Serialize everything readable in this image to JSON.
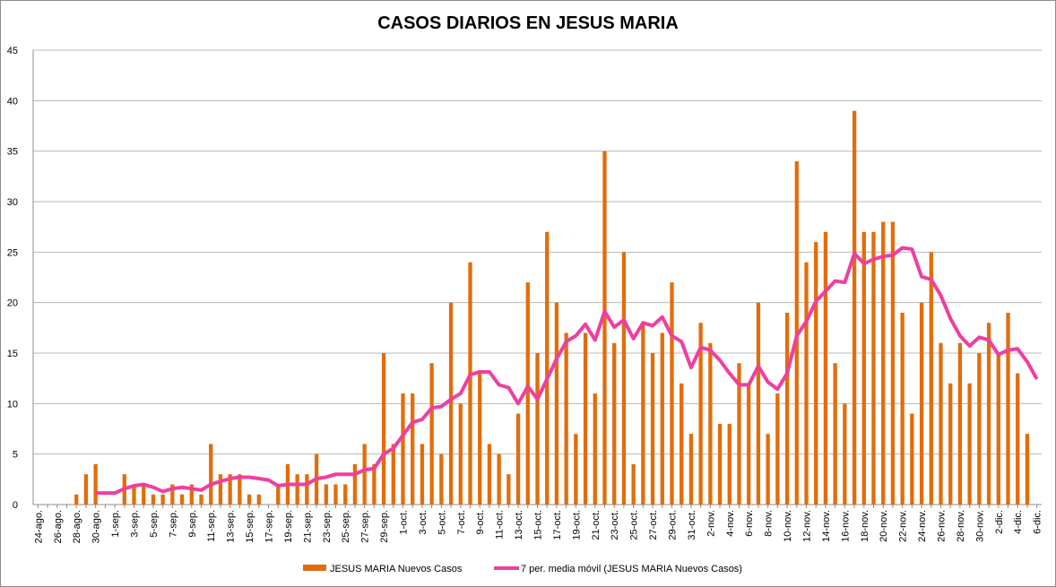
{
  "chart_data": {
    "type": "bar_line",
    "title": "CASOS DIARIOS EN JESUS MARIA",
    "categories": [
      "24-ago.",
      null,
      "26-ago.",
      null,
      "28-ago.",
      null,
      "30-ago.",
      null,
      "1-sep.",
      null,
      "3-sep.",
      null,
      "5-sep.",
      null,
      "7-sep.",
      null,
      "9-sep.",
      null,
      "11-sep.",
      null,
      "13-sep.",
      null,
      "15-sep.",
      null,
      "17-sep.",
      null,
      "19-sep.",
      null,
      "21-sep.",
      null,
      "23-sep.",
      null,
      "25-sep.",
      null,
      "27-sep.",
      null,
      "29-sep.",
      null,
      "1-oct.",
      null,
      "3-oct.",
      null,
      "5-oct.",
      null,
      "7-oct.",
      null,
      "9-oct.",
      null,
      "11-oct.",
      null,
      "13-oct.",
      null,
      "15-oct.",
      null,
      "17-oct.",
      null,
      "19-oct.",
      null,
      "21-oct.",
      null,
      "23-oct.",
      null,
      "25-oct.",
      null,
      "27-oct.",
      null,
      "29-oct.",
      null,
      "31-oct.",
      null,
      "2-nov.",
      null,
      "4-nov.",
      null,
      "6-nov.",
      null,
      "8-nov.",
      null,
      "10-nov.",
      null,
      "12-nov.",
      null,
      "14-nov.",
      null,
      "16-nov.",
      null,
      "18-nov.",
      null,
      "20-nov.",
      null,
      "22-nov.",
      null,
      "24-nov.",
      null,
      "26-nov.",
      null,
      "28-nov.",
      null,
      "30-nov.",
      null,
      "2-dic.",
      null,
      "4-dic.",
      null,
      "6-dic."
    ],
    "series": [
      {
        "name": "JESUS MARIA Nuevos Casos",
        "color": "#e36c0a",
        "kind": "bar",
        "values": [
          0,
          0,
          0,
          0,
          1,
          3,
          4,
          0,
          0,
          3,
          2,
          2,
          1,
          1,
          2,
          1,
          2,
          1,
          6,
          3,
          3,
          3,
          1,
          1,
          0,
          2,
          4,
          3,
          3,
          5,
          2,
          2,
          2,
          4,
          6,
          4,
          15,
          6,
          11,
          11,
          6,
          14,
          5,
          20,
          10,
          24,
          13,
          6,
          5,
          3,
          9,
          22,
          15,
          27,
          20,
          17,
          7,
          17,
          11,
          35,
          16,
          25,
          4,
          18,
          15,
          17,
          22,
          12,
          7,
          18,
          16,
          8,
          8,
          14,
          12,
          20,
          7,
          11,
          19,
          34,
          24,
          26,
          27,
          14,
          10,
          39,
          27,
          27,
          28,
          28,
          19,
          9,
          20,
          25,
          16,
          12,
          16,
          12,
          15,
          18,
          15,
          19,
          13,
          7,
          0
        ]
      },
      {
        "name": "7 per. media móvil (JESUS MARIA Nuevos Casos)",
        "color": "#ee3fa0",
        "kind": "line",
        "values": [
          null,
          null,
          null,
          null,
          null,
          null,
          1.14,
          1.14,
          1.14,
          1.57,
          1.86,
          2,
          1.71,
          1.29,
          1.57,
          1.71,
          1.57,
          1.43,
          2,
          2.29,
          2.57,
          2.71,
          2.71,
          2.57,
          2.43,
          1.86,
          2,
          2,
          2,
          2.57,
          2.71,
          3,
          3,
          3,
          3.43,
          3.57,
          5,
          5.57,
          6.86,
          8.14,
          8.43,
          9.57,
          9.71,
          10.43,
          11,
          12.86,
          13.14,
          13.14,
          11.86,
          11.57,
          10,
          11.71,
          10.43,
          12.43,
          14.43,
          16.14,
          16.71,
          17.86,
          16.29,
          19.14,
          17.57,
          18.29,
          16.43,
          18,
          17.71,
          18.57,
          16.71,
          16.14,
          13.57,
          15.57,
          15.29,
          14.29,
          13,
          11.86,
          11.86,
          13.71,
          12.14,
          11.43,
          13,
          16.71,
          18.14,
          20.14,
          21.14,
          22.14,
          22,
          24.86,
          23.86,
          24.29,
          24.57,
          24.71,
          25.43,
          25.29,
          22.57,
          22.29,
          20.71,
          18.43,
          16.71,
          15.71,
          16.57,
          16.29,
          14.86,
          15.29,
          15.43,
          14.14,
          12.43
        ]
      }
    ],
    "ylim": [
      0,
      45
    ],
    "yticks": [
      0,
      5,
      10,
      15,
      20,
      25,
      30,
      35,
      40,
      45
    ],
    "grid": true,
    "legend": "bottom"
  }
}
